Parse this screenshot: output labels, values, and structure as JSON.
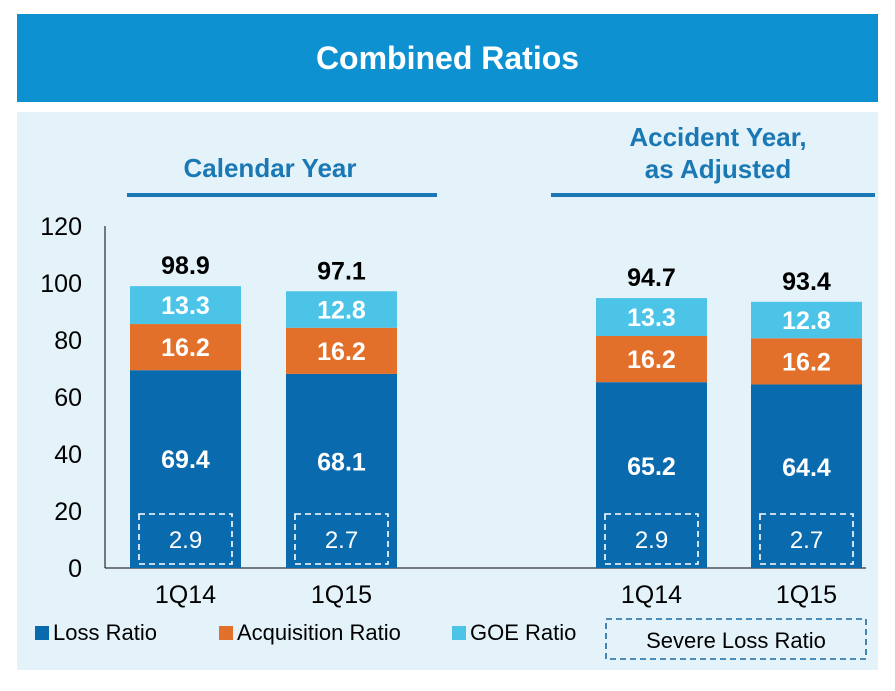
{
  "banner": {
    "title": "Combined Ratios"
  },
  "colors": {
    "banner_bg": "#0e91d0",
    "panel_bg": "#e4f3fa",
    "loss": "#0a6aae",
    "acquisition": "#e3702a",
    "goe": "#4cc4e8",
    "heading": "#1a78b4",
    "severe_border": "#1a6aa3"
  },
  "chart_data": {
    "type": "bar",
    "stacked": true,
    "groups": [
      {
        "title": "Calendar Year",
        "categories": [
          "1Q14",
          "1Q15"
        ],
        "totals": [
          98.9,
          97.1
        ]
      },
      {
        "title": "Accident Year,\nas Adjusted",
        "categories": [
          "1Q14",
          "1Q15"
        ],
        "totals": [
          94.7,
          93.4
        ]
      }
    ],
    "categories": [
      "1Q14",
      "1Q15",
      "1Q14",
      "1Q15"
    ],
    "series": [
      {
        "name": "Loss Ratio",
        "values": [
          69.4,
          68.1,
          65.2,
          64.4
        ]
      },
      {
        "name": "Acquisition Ratio",
        "values": [
          16.2,
          16.2,
          16.2,
          16.2
        ]
      },
      {
        "name": "GOE Ratio",
        "values": [
          13.3,
          12.8,
          13.3,
          12.8
        ]
      }
    ],
    "totals": [
      98.9,
      97.1,
      94.7,
      93.4
    ],
    "severe_loss": {
      "name": "Severe Loss Ratio",
      "values": [
        2.9,
        2.7,
        2.9,
        2.7
      ]
    },
    "yticks": [
      0,
      20,
      40,
      60,
      80,
      100,
      120
    ],
    "ylim": [
      0,
      120
    ],
    "legend": {
      "position": "bottom",
      "items": [
        "Loss Ratio",
        "Acquisition Ratio",
        "GOE Ratio",
        "Severe Loss Ratio"
      ]
    }
  }
}
